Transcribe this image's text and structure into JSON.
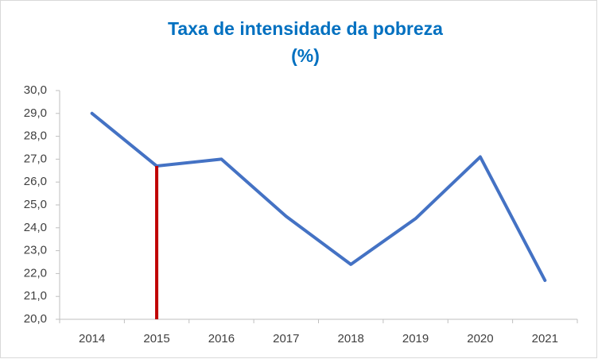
{
  "chart_data": {
    "type": "line",
    "title": "Taxa de intensidade da pobreza",
    "subtitle": "(%)",
    "categories": [
      "2014",
      "2015",
      "2016",
      "2017",
      "2018",
      "2019",
      "2020",
      "2021"
    ],
    "series": [
      {
        "color": "#4472c4",
        "values": [
          29.0,
          26.7,
          27.0,
          24.5,
          22.4,
          24.4,
          27.1,
          21.7
        ]
      }
    ],
    "drop_line": {
      "category_index": 1,
      "color": "#c00000"
    },
    "ylim": [
      20,
      30
    ],
    "yticks": [
      {
        "value": 20,
        "label": "20,0"
      },
      {
        "value": 21,
        "label": "21,0"
      },
      {
        "value": 22,
        "label": "22,0"
      },
      {
        "value": 23,
        "label": "23,0"
      },
      {
        "value": 24,
        "label": "24,0"
      },
      {
        "value": 25,
        "label": "25,0"
      },
      {
        "value": 26,
        "label": "26,0"
      },
      {
        "value": 27,
        "label": "27,0"
      },
      {
        "value": 28,
        "label": "28,0"
      },
      {
        "value": 29,
        "label": "29,0"
      },
      {
        "value": 30,
        "label": "30,0"
      }
    ],
    "grid": false
  }
}
